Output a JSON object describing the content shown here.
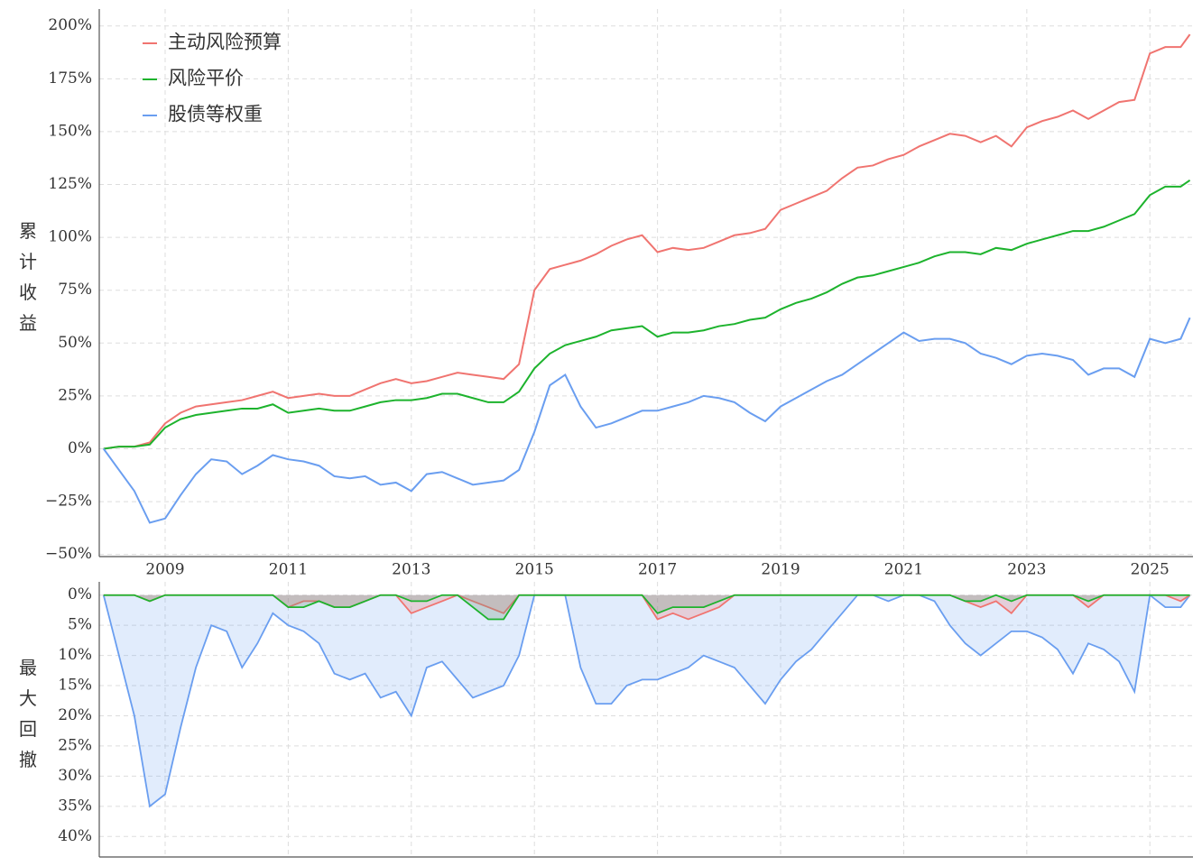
{
  "chart_data": [
    {
      "type": "line",
      "ylabel": "累计收益",
      "legend": "upper left",
      "grid": true,
      "x": [
        2008,
        2008.25,
        2008.5,
        2008.75,
        2009,
        2009.25,
        2009.5,
        2009.75,
        2010,
        2010.25,
        2010.5,
        2010.75,
        2011,
        2011.25,
        2011.5,
        2011.75,
        2012,
        2012.25,
        2012.5,
        2012.75,
        2013,
        2013.25,
        2013.5,
        2013.75,
        2014,
        2014.25,
        2014.5,
        2014.75,
        2015,
        2015.25,
        2015.5,
        2015.75,
        2016,
        2016.25,
        2016.5,
        2016.75,
        2017,
        2017.25,
        2017.5,
        2017.75,
        2018,
        2018.25,
        2018.5,
        2018.75,
        2019,
        2019.25,
        2019.5,
        2019.75,
        2020,
        2020.25,
        2020.5,
        2020.75,
        2021,
        2021.25,
        2021.5,
        2021.75,
        2022,
        2022.25,
        2022.5,
        2022.75,
        2023,
        2023.25,
        2023.5,
        2023.75,
        2024,
        2024.25,
        2024.5,
        2024.75,
        2025,
        2025.25,
        2025.5,
        2025.65
      ],
      "series": [
        {
          "name": "主动风险预算",
          "color": "#f07470",
          "values": [
            0,
            1,
            1,
            3,
            12,
            17,
            20,
            21,
            22,
            23,
            25,
            27,
            24,
            25,
            26,
            25,
            25,
            28,
            31,
            33,
            31,
            32,
            34,
            36,
            35,
            34,
            33,
            40,
            75,
            85,
            87,
            89,
            92,
            96,
            99,
            101,
            93,
            95,
            94,
            95,
            98,
            101,
            102,
            104,
            113,
            116,
            119,
            122,
            128,
            133,
            134,
            137,
            139,
            143,
            146,
            149,
            148,
            145,
            148,
            143,
            152,
            155,
            157,
            160,
            156,
            160,
            164,
            165,
            187,
            190,
            190,
            196
          ]
        },
        {
          "name": "风险平价",
          "color": "#1db32d",
          "values": [
            0,
            1,
            1,
            2,
            10,
            14,
            16,
            17,
            18,
            19,
            19,
            21,
            17,
            18,
            19,
            18,
            18,
            20,
            22,
            23,
            23,
            24,
            26,
            26,
            24,
            22,
            22,
            27,
            38,
            45,
            49,
            51,
            53,
            56,
            57,
            58,
            53,
            55,
            55,
            56,
            58,
            59,
            61,
            62,
            66,
            69,
            71,
            74,
            78,
            81,
            82,
            84,
            86,
            88,
            91,
            93,
            93,
            92,
            95,
            94,
            97,
            99,
            101,
            103,
            103,
            105,
            108,
            111,
            120,
            124,
            124,
            127
          ]
        },
        {
          "name": "股债等权重",
          "color": "#6a9ef0",
          "values": [
            0,
            -10,
            -20,
            -35,
            -33,
            -22,
            -12,
            -5,
            -6,
            -12,
            -8,
            -3,
            -5,
            -6,
            -8,
            -13,
            -14,
            -13,
            -17,
            -16,
            -20,
            -12,
            -11,
            -14,
            -17,
            -16,
            -15,
            -10,
            8,
            30,
            35,
            20,
            10,
            12,
            15,
            18,
            18,
            20,
            22,
            25,
            24,
            22,
            17,
            13,
            20,
            24,
            28,
            32,
            35,
            40,
            45,
            50,
            55,
            51,
            52,
            52,
            50,
            45,
            43,
            40,
            44,
            45,
            44,
            42,
            35,
            38,
            38,
            34,
            52,
            50,
            52,
            62
          ]
        }
      ],
      "xlim": [
        2007.93,
        2025.7
      ],
      "xticks": [
        2009,
        2011,
        2013,
        2015,
        2017,
        2019,
        2021,
        2023,
        2025
      ],
      "ylim": [
        -51,
        208
      ],
      "yticks": [
        {
          "value": -50,
          "label": "−50%"
        },
        {
          "value": -25,
          "label": "−25%"
        },
        {
          "value": 0,
          "label": "0%"
        },
        {
          "value": 25,
          "label": "25%"
        },
        {
          "value": 50,
          "label": "50%"
        },
        {
          "value": 75,
          "label": "75%"
        },
        {
          "value": 100,
          "label": "100%"
        },
        {
          "value": 125,
          "label": "125%"
        },
        {
          "value": 150,
          "label": "150%"
        },
        {
          "value": 175,
          "label": "175%"
        },
        {
          "value": 200,
          "label": "200%"
        }
      ]
    },
    {
      "type": "area",
      "ylabel": "最大回撤",
      "grid": true,
      "inverted": true,
      "x": [
        2008,
        2008.25,
        2008.5,
        2008.75,
        2009,
        2009.25,
        2009.5,
        2009.75,
        2010,
        2010.25,
        2010.5,
        2010.75,
        2011,
        2011.25,
        2011.5,
        2011.75,
        2012,
        2012.25,
        2012.5,
        2012.75,
        2013,
        2013.25,
        2013.5,
        2013.75,
        2014,
        2014.25,
        2014.5,
        2014.75,
        2015,
        2015.25,
        2015.5,
        2015.75,
        2016,
        2016.25,
        2016.5,
        2016.75,
        2017,
        2017.25,
        2017.5,
        2017.75,
        2018,
        2018.25,
        2018.5,
        2018.75,
        2019,
        2019.25,
        2019.5,
        2019.75,
        2020,
        2020.25,
        2020.5,
        2020.75,
        2021,
        2021.25,
        2021.5,
        2021.75,
        2022,
        2022.25,
        2022.5,
        2022.75,
        2023,
        2023.25,
        2023.5,
        2023.75,
        2024,
        2024.25,
        2024.5,
        2024.75,
        2025,
        2025.25,
        2025.5,
        2025.65
      ],
      "series": [
        {
          "name": "股债等权重",
          "color": "#6a9ef0",
          "fill": "rgba(106,158,240,0.2)",
          "values": [
            0,
            10,
            20,
            35,
            33,
            22,
            12,
            5,
            6,
            12,
            8,
            3,
            5,
            6,
            8,
            13,
            14,
            13,
            17,
            16,
            20,
            12,
            11,
            14,
            17,
            16,
            15,
            10,
            0,
            0,
            0,
            12,
            18,
            18,
            15,
            14,
            14,
            13,
            12,
            10,
            11,
            12,
            15,
            18,
            14,
            11,
            9,
            6,
            3,
            0,
            0,
            1,
            0,
            0,
            1,
            5,
            8,
            10,
            8,
            6,
            6,
            7,
            9,
            13,
            8,
            9,
            11,
            16,
            0,
            2,
            2,
            0
          ]
        },
        {
          "name": "主动风险预算",
          "color": "#f07470",
          "fill": "rgba(240,116,112,0.25)",
          "values": [
            0,
            0,
            0,
            1,
            0,
            0,
            0,
            0,
            0,
            0,
            0,
            0,
            2,
            1,
            1,
            2,
            2,
            1,
            0,
            0,
            3,
            2,
            1,
            0,
            1,
            2,
            3,
            0,
            0,
            0,
            0,
            0,
            0,
            0,
            0,
            0,
            4,
            3,
            4,
            3,
            2,
            0,
            0,
            0,
            0,
            0,
            0,
            0,
            0,
            0,
            0,
            0,
            0,
            0,
            0,
            0,
            1,
            2,
            1,
            3,
            0,
            0,
            0,
            0,
            2,
            0,
            0,
            0,
            0,
            0,
            1,
            0
          ]
        },
        {
          "name": "风险平价",
          "color": "#1db32d",
          "fill": "rgba(120,150,130,0.3)",
          "values": [
            0,
            0,
            0,
            1,
            0,
            0,
            0,
            0,
            0,
            0,
            0,
            0,
            2,
            2,
            1,
            2,
            2,
            1,
            0,
            0,
            1,
            1,
            0,
            0,
            2,
            4,
            4,
            0,
            0,
            0,
            0,
            0,
            0,
            0,
            0,
            0,
            3,
            2,
            2,
            2,
            1,
            0,
            0,
            0,
            0,
            0,
            0,
            0,
            0,
            0,
            0,
            0,
            0,
            0,
            0,
            0,
            1,
            1,
            0,
            1,
            0,
            0,
            0,
            0,
            1,
            0,
            0,
            0,
            0,
            0,
            0,
            0
          ]
        }
      ],
      "xlim": [
        2007.93,
        2025.7
      ],
      "xticks": [
        2009,
        2011,
        2013,
        2015,
        2017,
        2019,
        2021,
        2023,
        2025
      ],
      "ylim": [
        -2.2,
        43.4
      ],
      "yticks": [
        {
          "value": 0,
          "label": "0%"
        },
        {
          "value": 5,
          "label": "5%"
        },
        {
          "value": 10,
          "label": "10%"
        },
        {
          "value": 15,
          "label": "15%"
        },
        {
          "value": 20,
          "label": "20%"
        },
        {
          "value": 25,
          "label": "25%"
        },
        {
          "value": 30,
          "label": "30%"
        },
        {
          "value": 35,
          "label": "35%"
        },
        {
          "value": 40,
          "label": "40%"
        }
      ]
    }
  ]
}
